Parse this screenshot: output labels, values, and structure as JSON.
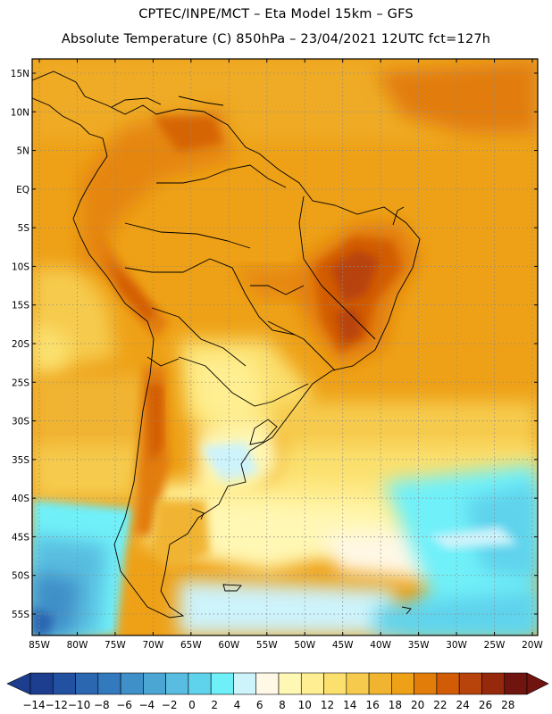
{
  "header": {
    "line1": "CPTEC/INPE/MCT –   Eta Model 15km – GFS",
    "line2": "Absolute Temperature (C) 850hPa – 23/04/2021 12UTC fct=127h"
  },
  "map": {
    "lat_labels": [
      "15N",
      "10N",
      "5N",
      "EQ",
      "5S",
      "10S",
      "15S",
      "20S",
      "25S",
      "30S",
      "35S",
      "40S",
      "45S",
      "50S",
      "55S"
    ],
    "lon_labels": [
      "85W",
      "80W",
      "75W",
      "70W",
      "65W",
      "60W",
      "55W",
      "50W",
      "45W",
      "40W",
      "35W",
      "30W",
      "25W",
      "20W"
    ]
  },
  "colorbar": {
    "labels": [
      "-14",
      "-12",
      "-10",
      "-8",
      "-6",
      "-4",
      "-2",
      "0",
      "2",
      "4",
      "6",
      "8",
      "10",
      "12",
      "14",
      "16",
      "18",
      "20",
      "22",
      "24",
      "26",
      "28"
    ],
    "colors": [
      "#1d3d8f",
      "#2351a1",
      "#2b66b1",
      "#3379bd",
      "#3f8fc8",
      "#4ba6d3",
      "#58bde0",
      "#5fd3ec",
      "#6ff0f9",
      "#cdf3fb",
      "#fff8e6",
      "#fff7b4",
      "#ffef92",
      "#fbe06e",
      "#f6cb4d",
      "#f1b431",
      "#eea117",
      "#e27d0a",
      "#d25c06",
      "#b8430b",
      "#96280c",
      "#701410"
    ]
  }
}
